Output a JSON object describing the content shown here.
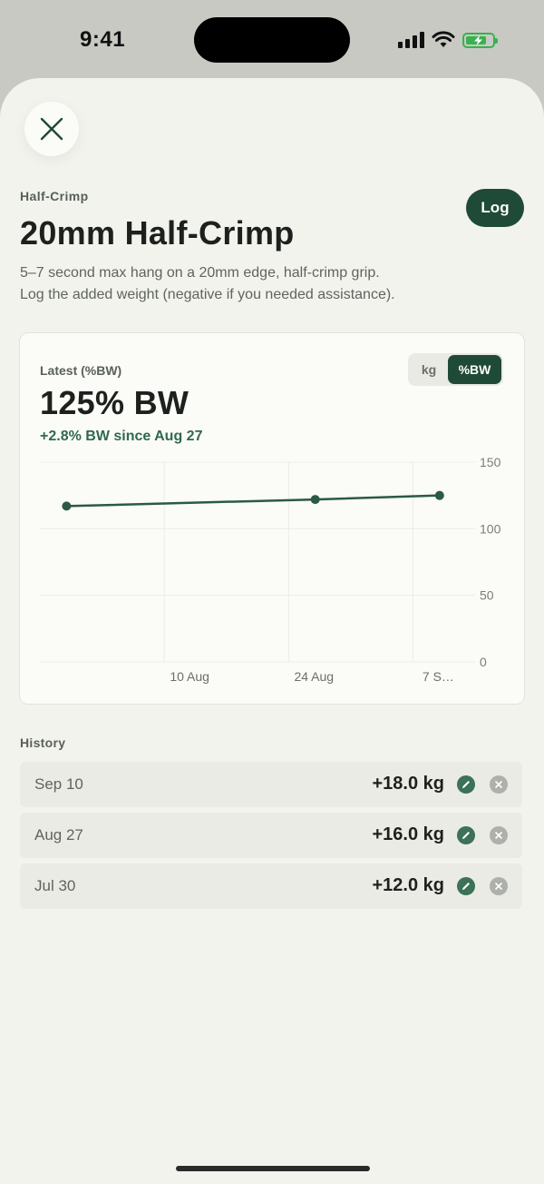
{
  "status_bar": {
    "time": "9:41"
  },
  "header": {
    "category": "Half-Crimp",
    "title": "20mm Half-Crimp",
    "log_label": "Log",
    "description_lines": [
      "5–7 second max hang on a 20mm edge, half-crimp grip.",
      "Log the added weight (negative if you needed assistance)."
    ]
  },
  "summary": {
    "latest_label": "Latest (%BW)",
    "latest_value": "125% BW",
    "delta": "+2.8% BW since Aug 27",
    "unit_options": [
      "kg",
      "%BW"
    ],
    "selected_unit": "%BW"
  },
  "chart_data": {
    "type": "line",
    "x_tick_labels": [
      "10 Aug",
      "24 Aug",
      "7 S…"
    ],
    "y_ticks": [
      0,
      50,
      100,
      150
    ],
    "ylim": [
      0,
      150
    ],
    "xlim": [
      "2025-07-27",
      "2025-09-14"
    ],
    "grid": true,
    "points": [
      {
        "x": "2025-07-30",
        "y": 117
      },
      {
        "x": "2025-08-27",
        "y": 122
      },
      {
        "x": "2025-09-10",
        "y": 125
      }
    ],
    "line_color": "#2b5a44"
  },
  "history": {
    "label": "History",
    "rows": [
      {
        "date": "Sep 10",
        "value": "+18.0 kg"
      },
      {
        "date": "Aug 27",
        "value": "+16.0 kg"
      },
      {
        "date": "Jul 30",
        "value": "+12.0 kg"
      }
    ]
  },
  "colors": {
    "accent": "#1f4a38",
    "positive": "#2f6a4d",
    "background": "#f3f3ee"
  }
}
